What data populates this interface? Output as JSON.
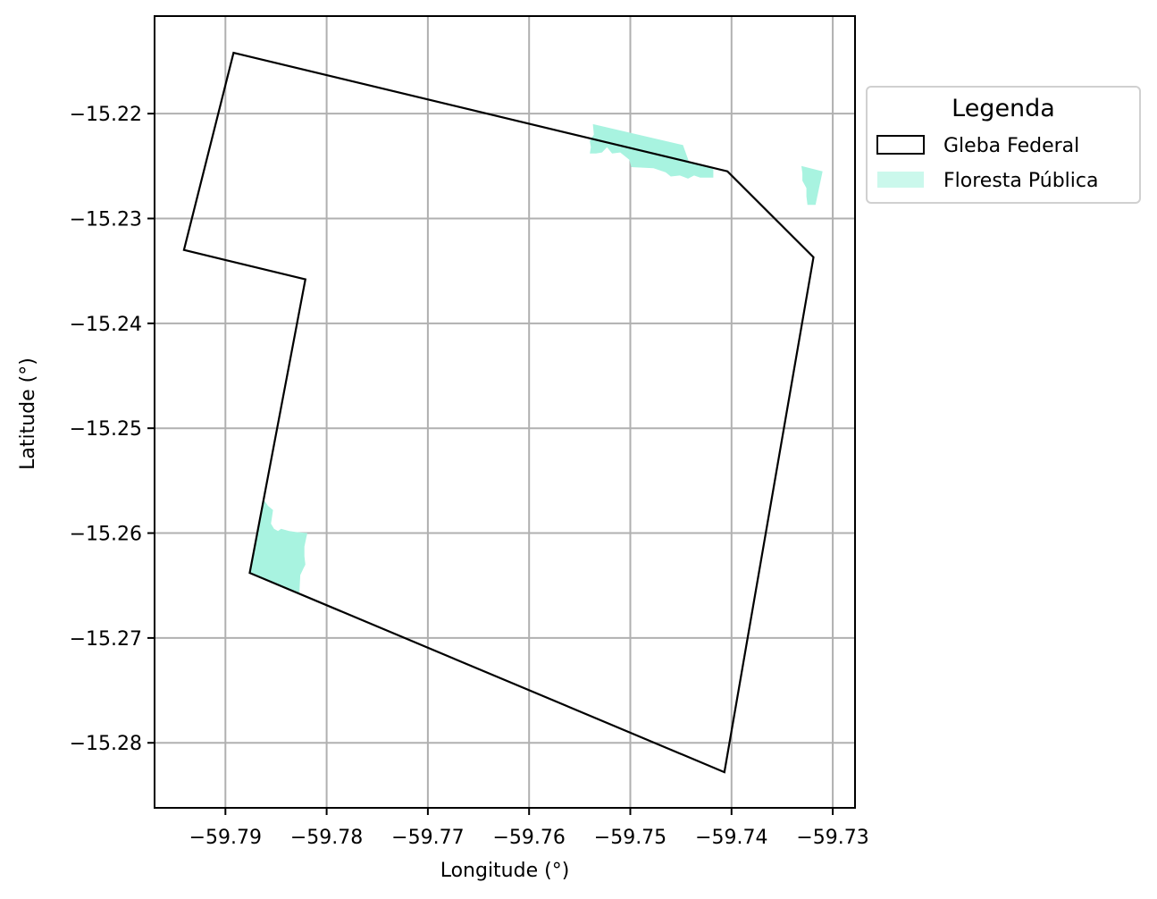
{
  "chart_data": {
    "type": "map",
    "xlabel": "Longitude (°)",
    "ylabel": "Latitude (°)",
    "xlim": [
      -59.797,
      -59.7278
    ],
    "ylim": [
      -15.2862,
      -15.2107
    ],
    "xticks": [
      -59.79,
      -59.78,
      -59.77,
      -59.76,
      -59.75,
      -59.74,
      -59.73
    ],
    "yticks": [
      -15.22,
      -15.23,
      -15.24,
      -15.25,
      -15.26,
      -15.27,
      -15.28
    ],
    "xtick_labels": [
      "−59.79",
      "−59.78",
      "−59.77",
      "−59.76",
      "−59.75",
      "−59.74",
      "−59.73"
    ],
    "ytick_labels": [
      "−15.22",
      "−15.23",
      "−15.24",
      "−15.25",
      "−15.26",
      "−15.27",
      "−15.28"
    ],
    "grid": true,
    "legend": {
      "title": "Legenda",
      "placement": "outside-right-top",
      "entries": [
        {
          "label": "Gleba Federal",
          "style": "outline",
          "color": "#000000"
        },
        {
          "label": "Floresta Pública",
          "style": "fill",
          "color": "#a8f3e0"
        }
      ]
    },
    "gleba_federal": [
      [
        -59.7892,
        -15.2142
      ],
      [
        -59.7404,
        -15.2255
      ],
      [
        -59.7319,
        -15.2337
      ],
      [
        -59.7407,
        -15.2828
      ],
      [
        -59.7876,
        -15.2638
      ],
      [
        -59.7821,
        -15.2358
      ],
      [
        -59.7941,
        -15.233
      ],
      [
        -59.7892,
        -15.2142
      ]
    ],
    "floresta_publica": [
      [
        [
          -59.7537,
          -15.221
        ],
        [
          -59.7448,
          -15.223
        ],
        [
          -59.7442,
          -15.2246
        ],
        [
          -59.7418,
          -15.2253
        ],
        [
          -59.7418,
          -15.2261
        ],
        [
          -59.7431,
          -15.2261
        ],
        [
          -59.7437,
          -15.2259
        ],
        [
          -59.7443,
          -15.2262
        ],
        [
          -59.7451,
          -15.2259
        ],
        [
          -59.746,
          -15.226
        ],
        [
          -59.7465,
          -15.2256
        ],
        [
          -59.7477,
          -15.2252
        ],
        [
          -59.7499,
          -15.2251
        ],
        [
          -59.7501,
          -15.2244
        ],
        [
          -59.751,
          -15.2237
        ],
        [
          -59.7518,
          -15.2238
        ],
        [
          -59.7523,
          -15.2232
        ],
        [
          -59.7528,
          -15.2237
        ],
        [
          -59.7534,
          -15.2238
        ],
        [
          -59.754,
          -15.2238
        ],
        [
          -59.7539,
          -15.2232
        ],
        [
          -59.754,
          -15.2226
        ],
        [
          -59.7536,
          -15.222
        ],
        [
          -59.7537,
          -15.221
        ]
      ],
      [
        [
          -59.7331,
          -15.225
        ],
        [
          -59.731,
          -15.2255
        ],
        [
          -59.7317,
          -15.2287
        ],
        [
          -59.7325,
          -15.2287
        ],
        [
          -59.7326,
          -15.2279
        ],
        [
          -59.7326,
          -15.2271
        ],
        [
          -59.733,
          -15.2264
        ],
        [
          -59.733,
          -15.2257
        ],
        [
          -59.7331,
          -15.225
        ]
      ],
      [
        [
          -59.7862,
          -15.2569
        ],
        [
          -59.7877,
          -15.2638
        ],
        [
          -59.7827,
          -15.2658
        ],
        [
          -59.7826,
          -15.264
        ],
        [
          -59.7823,
          -15.2634
        ],
        [
          -59.7821,
          -15.263
        ],
        [
          -59.7822,
          -15.2622
        ],
        [
          -59.7822,
          -15.2613
        ],
        [
          -59.782,
          -15.2604
        ],
        [
          -59.7819,
          -15.26
        ],
        [
          -59.783,
          -15.2599
        ],
        [
          -59.7837,
          -15.2598
        ],
        [
          -59.7845,
          -15.2596
        ],
        [
          -59.7848,
          -15.2598
        ],
        [
          -59.7852,
          -15.2596
        ],
        [
          -59.7855,
          -15.2591
        ],
        [
          -59.7854,
          -15.2585
        ],
        [
          -59.7853,
          -15.2578
        ],
        [
          -59.7858,
          -15.2574
        ],
        [
          -59.786,
          -15.2571
        ],
        [
          -59.7862,
          -15.2569
        ]
      ]
    ]
  }
}
